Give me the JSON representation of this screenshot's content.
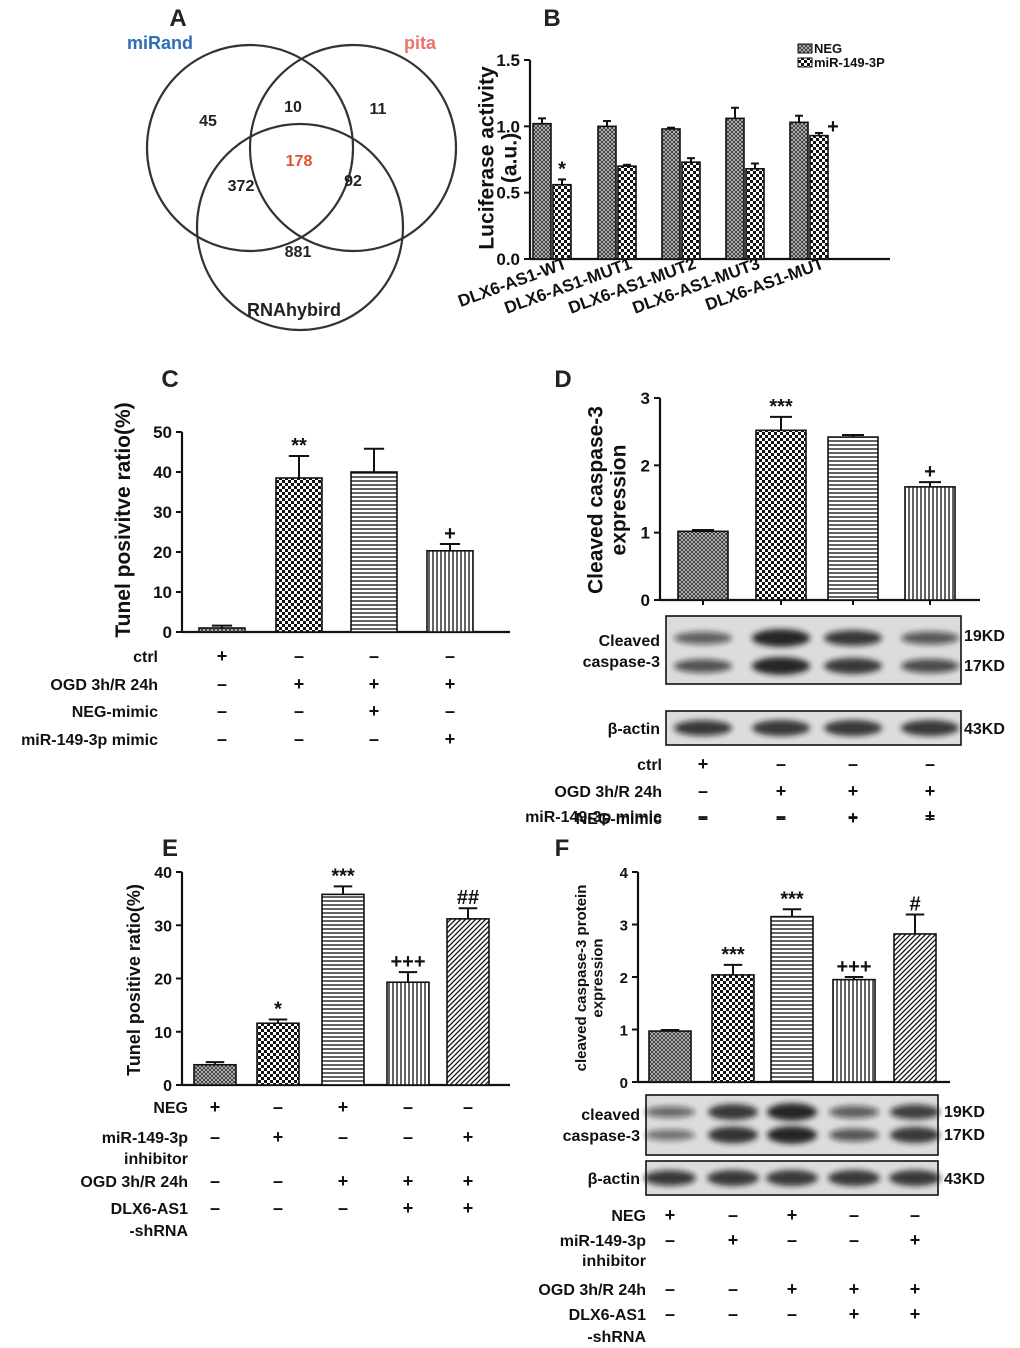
{
  "panels": {
    "A": {
      "label": "A",
      "venn": {
        "sets": [
          {
            "name": "miRand",
            "color": "#2e6db4"
          },
          {
            "name": "pita",
            "color": "#e8736b"
          },
          {
            "name": "RNAhybird",
            "color": "#222222"
          }
        ],
        "regions": {
          "miRand_only": "45",
          "miRand_pita": "10",
          "pita_only": "11",
          "all_three": "178",
          "miRand_RNAhybird": "372",
          "pita_RNAhybird": "92",
          "RNAhybird_only": "881"
        },
        "center_color": "#e5502c"
      }
    },
    "B": {
      "label": "B"
    },
    "C": {
      "label": "C"
    },
    "D": {
      "label": "D"
    },
    "E": {
      "label": "E"
    },
    "F": {
      "label": "F"
    }
  },
  "chart_data": [
    {
      "panel": "B",
      "type": "bar",
      "ylabel": "Luciferase activity (a.u.)",
      "ylim": [
        0,
        1.5
      ],
      "yticks": [
        "0.0",
        "0.5",
        "1.0",
        "1.5"
      ],
      "categories": [
        "DLX6-AS1-WT",
        "DLX6-AS1-MUT1",
        "DLX6-AS1-MUT2",
        "DLX6-AS1-MUT3",
        "DLX6-AS1-MUT"
      ],
      "series": [
        {
          "name": "NEG",
          "pattern": "crosshatch",
          "values": [
            1.02,
            1.0,
            0.98,
            1.06,
            1.03
          ],
          "errors": [
            0.04,
            0.04,
            0.01,
            0.08,
            0.05
          ]
        },
        {
          "name": "miR-149-3P",
          "pattern": "checker",
          "values": [
            0.56,
            0.7,
            0.73,
            0.68,
            0.93
          ],
          "errors": [
            0.04,
            0.01,
            0.03,
            0.04,
            0.02
          ]
        }
      ],
      "annotations": [
        {
          "category": 0,
          "series": 1,
          "text": "*"
        },
        {
          "category": 4,
          "series": 1,
          "text": "+"
        }
      ],
      "legend": "top-right"
    },
    {
      "panel": "C",
      "type": "bar",
      "ylabel": "Tunel posivitve ratio(%)",
      "ylim": [
        0,
        50
      ],
      "yticks": [
        "0",
        "10",
        "20",
        "30",
        "40",
        "50"
      ],
      "categories": [
        "1",
        "2",
        "3",
        "4"
      ],
      "values": [
        1,
        38.5,
        40,
        20.3
      ],
      "errors": [
        0.6,
        5.5,
        5.8,
        1.7
      ],
      "patterns": [
        "crosshatch",
        "checker",
        "hlines",
        "vlines"
      ],
      "annotations": [
        "",
        "**",
        "",
        "+"
      ],
      "conditions": [
        {
          "label": "ctrl",
          "marks": [
            "+",
            "-",
            "-",
            "-"
          ]
        },
        {
          "label": "OGD 3h/R 24h",
          "marks": [
            "-",
            "+",
            "+",
            "+"
          ]
        },
        {
          "label": "NEG-mimic",
          "marks": [
            "-",
            "-",
            "+",
            "-"
          ]
        },
        {
          "label": "miR-149-3p mimic",
          "marks": [
            "-",
            "-",
            "-",
            "+"
          ]
        }
      ]
    },
    {
      "panel": "D",
      "type": "bar",
      "ylabel": "Cleaved caspase-3 expression",
      "ylim": [
        0,
        3
      ],
      "yticks": [
        "0",
        "1",
        "2",
        "3"
      ],
      "categories": [
        "1",
        "2",
        "3",
        "4"
      ],
      "values": [
        1.02,
        2.52,
        2.42,
        1.68
      ],
      "errors": [
        0.02,
        0.2,
        0.03,
        0.07
      ],
      "patterns": [
        "crosshatch",
        "checker",
        "hlines",
        "vlines"
      ],
      "annotations": [
        "",
        "***",
        "",
        "+"
      ],
      "blots": [
        {
          "label": "Cleaved caspase-3",
          "sizes": [
            "19KD",
            "17KD"
          ]
        },
        {
          "label": "β-actin",
          "sizes": [
            "43KD"
          ]
        }
      ],
      "conditions": [
        {
          "label": "ctrl",
          "marks": [
            "+",
            "-",
            "-",
            "-"
          ]
        },
        {
          "label": "OGD 3h/R 24h",
          "marks": [
            "-",
            "+",
            "+",
            "+"
          ]
        },
        {
          "label": "NEG-mimic",
          "marks": [
            "-",
            "-",
            "+",
            "-"
          ]
        },
        {
          "label": "miR-149-3p mimic",
          "marks": [
            "-",
            "-",
            "-",
            "+"
          ]
        }
      ]
    },
    {
      "panel": "E",
      "type": "bar",
      "ylabel": "Tunel positive ratio(%)",
      "ylim": [
        0,
        40
      ],
      "yticks": [
        "0",
        "10",
        "20",
        "30",
        "40"
      ],
      "categories": [
        "1",
        "2",
        "3",
        "4",
        "5"
      ],
      "values": [
        3.8,
        11.6,
        35.8,
        19.3,
        31.2
      ],
      "errors": [
        0.5,
        0.7,
        1.5,
        1.9,
        2.0
      ],
      "patterns": [
        "crosshatch",
        "checker",
        "hlines",
        "vlines",
        "diag"
      ],
      "annotations": [
        "",
        "*",
        "***",
        "+++",
        "##"
      ],
      "conditions": [
        {
          "label": "NEG",
          "marks": [
            "+",
            "-",
            "+",
            "-",
            "-"
          ]
        },
        {
          "label": "miR-149-3p inhibitor",
          "marks": [
            "-",
            "+",
            "-",
            "-",
            "+"
          ]
        },
        {
          "label": "OGD 3h/R 24h",
          "marks": [
            "-",
            "-",
            "+",
            "+",
            "+"
          ]
        },
        {
          "label": "DLX6-AS1 -shRNA",
          "marks": [
            "-",
            "-",
            "-",
            "+",
            "+"
          ]
        }
      ]
    },
    {
      "panel": "F",
      "type": "bar",
      "ylabel": "cleaved caspase-3 protein expression",
      "ylim": [
        0,
        4
      ],
      "yticks": [
        "0",
        "1",
        "2",
        "3",
        "4"
      ],
      "categories": [
        "1",
        "2",
        "3",
        "4",
        "5"
      ],
      "values": [
        0.97,
        2.04,
        3.15,
        1.95,
        2.82
      ],
      "errors": [
        0.02,
        0.19,
        0.14,
        0.05,
        0.37
      ],
      "patterns": [
        "crosshatch",
        "checker",
        "hlines",
        "vlines",
        "diag"
      ],
      "annotations": [
        "",
        "***",
        "***",
        "+++",
        "#"
      ],
      "blots": [
        {
          "label": "cleaved caspase-3",
          "sizes": [
            "19KD",
            "17KD"
          ]
        },
        {
          "label": "β-actin",
          "sizes": [
            "43KD"
          ]
        }
      ],
      "conditions": [
        {
          "label": "NEG",
          "marks": [
            "+",
            "-",
            "+",
            "-",
            "-"
          ]
        },
        {
          "label": "miR-149-3p inhibitor",
          "marks": [
            "-",
            "+",
            "-",
            "-",
            "+"
          ]
        },
        {
          "label": "OGD 3h/R 24h",
          "marks": [
            "-",
            "-",
            "+",
            "+",
            "+"
          ]
        },
        {
          "label": "DLX6-AS1 -shRNA",
          "marks": [
            "-",
            "-",
            "-",
            "+",
            "+"
          ]
        }
      ]
    }
  ]
}
